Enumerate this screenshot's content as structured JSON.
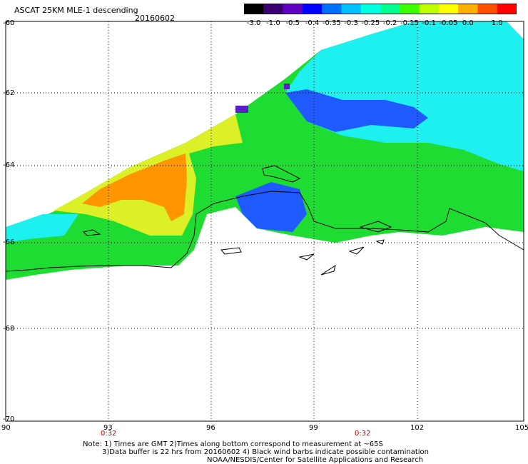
{
  "header": {
    "title": "ASCAT 25KM MLE-1 descending",
    "date": "20160602"
  },
  "colorbar": {
    "labels": [
      "-3.0",
      "-1.0",
      "-0.5",
      "-0.4",
      "-0.35",
      "-0.3",
      "-0.25",
      "-0.2",
      "-0.15",
      "-0.1",
      "-0.05",
      "0.0",
      "1.0"
    ],
    "colors": [
      "#000000",
      "#3a0070",
      "#6000c0",
      "#0000ff",
      "#0070ff",
      "#00c0ff",
      "#00ffe0",
      "#00ff90",
      "#40ff00",
      "#c0ff00",
      "#ffff00",
      "#ffb000",
      "#ff5000",
      "#ff0000"
    ]
  },
  "axes": {
    "x_ticks": [
      "90",
      "93",
      "96",
      "99",
      "102",
      "105"
    ],
    "y_ticks": [
      "-60",
      "-62",
      "-64",
      "-66",
      "-68",
      "-70"
    ],
    "x_range": [
      90,
      105
    ],
    "y_range": [
      -60,
      -70
    ],
    "time_labels": [
      {
        "lon": 93,
        "text": "0:32"
      },
      {
        "lon": 100.3,
        "text": "0:32"
      }
    ]
  },
  "notes": {
    "line1": "Note: 1) Times are GMT 2)Times along bottom correspond to measurement at ~65S",
    "line2": "3)Data buffer is 22 hrs from 20160602 4) Black wind barbs indicate possible contamination",
    "line3": "NOAA/NESDIS/Center for Satellite Applications and Research"
  },
  "map_colors": {
    "green": "#1edc32",
    "cyan": "#1ef0f0",
    "blue": "#1e5aff",
    "yellow": "#dcf028",
    "orange": "#ff9600",
    "purple": "#5a1ec8"
  }
}
